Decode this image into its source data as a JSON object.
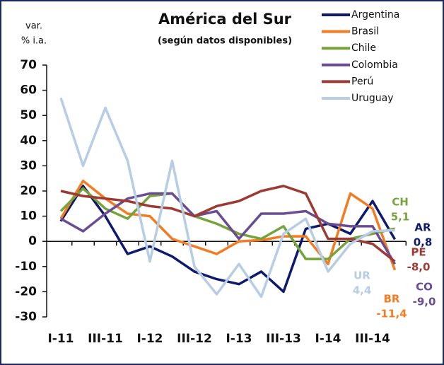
{
  "chart_data": {
    "type": "line",
    "title": "América del Sur",
    "subtitle": "(según datos disponibles)",
    "ylabel_lines": [
      "var.",
      "% i.a."
    ],
    "categories": [
      "I-11",
      null,
      "III-11",
      null,
      "I-12",
      null,
      "III-12",
      null,
      "I-13",
      null,
      "III-13",
      null,
      "I-14",
      null,
      "III-14",
      null
    ],
    "ylim": [
      -30,
      70
    ],
    "yticks": [
      -30,
      -20,
      -10,
      0,
      10,
      20,
      30,
      40,
      50,
      60,
      70
    ],
    "series": [
      {
        "name": "Argentina",
        "color": "#0d1a6e",
        "end_label": "AR",
        "values": [
          8,
          22,
          10,
          -5,
          -2,
          -6,
          -12,
          -15,
          -17,
          -12,
          -20,
          5,
          7,
          3,
          16,
          0.8
        ],
        "value_labels": [
          null,
          null,
          null,
          null,
          null,
          null,
          null,
          null,
          null,
          null,
          null,
          null,
          null,
          null,
          null,
          "0,8"
        ]
      },
      {
        "name": "Brasil",
        "color": "#f47b20",
        "end_label": "BR",
        "values": [
          9,
          24,
          17,
          11,
          10,
          1,
          -2,
          -5,
          0,
          0.5,
          2,
          2,
          -9,
          19,
          13,
          -11.4
        ],
        "value_labels": [
          null,
          null,
          null,
          null,
          null,
          null,
          null,
          null,
          null,
          null,
          null,
          null,
          null,
          null,
          null,
          "-11,4"
        ]
      },
      {
        "name": "Chile",
        "color": "#77a33c",
        "end_label": "CH",
        "values": [
          12,
          21,
          13,
          9,
          18,
          19,
          10,
          7,
          3,
          1,
          6,
          -7,
          -7,
          1,
          3,
          5.1
        ],
        "value_labels": [
          null,
          null,
          null,
          null,
          null,
          null,
          null,
          null,
          null,
          null,
          null,
          null,
          null,
          null,
          null,
          "5,1"
        ]
      },
      {
        "name": "Colombia",
        "color": "#6a4c93",
        "end_label": "CO",
        "values": [
          9,
          4,
          11,
          17,
          19,
          19,
          10,
          12,
          1,
          11,
          11,
          12,
          7,
          6,
          6,
          -9.0
        ],
        "value_labels": [
          null,
          null,
          null,
          null,
          null,
          null,
          null,
          null,
          null,
          null,
          null,
          null,
          null,
          null,
          null,
          "-9,0"
        ]
      },
      {
        "name": "Perú",
        "color": "#9c3a33",
        "end_label": "PE",
        "values": [
          20,
          18,
          17,
          16,
          14,
          13,
          10,
          14,
          16,
          20,
          22,
          19,
          1,
          1,
          -1,
          -8.0
        ],
        "value_labels": [
          null,
          null,
          null,
          null,
          null,
          null,
          null,
          null,
          null,
          null,
          null,
          null,
          null,
          null,
          null,
          "-8,0"
        ]
      },
      {
        "name": "Uruguay",
        "color": "#b7cde6",
        "end_label": "UR",
        "values": [
          57,
          30,
          53,
          32,
          -8,
          32,
          -10,
          -21,
          -9,
          -22,
          3,
          9,
          -12,
          -1,
          4,
          4.4
        ],
        "value_labels": [
          null,
          null,
          null,
          null,
          null,
          null,
          null,
          null,
          null,
          null,
          null,
          null,
          null,
          null,
          null,
          "4,4"
        ]
      }
    ]
  }
}
